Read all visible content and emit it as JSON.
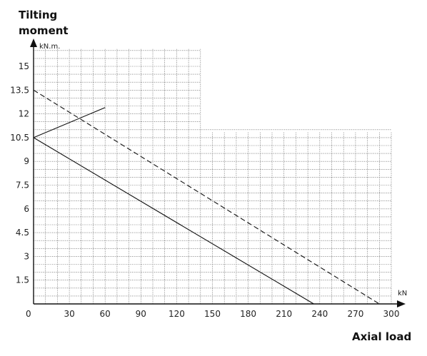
{
  "chart_data": {
    "type": "line",
    "ylabel_lines": [
      "Tilting",
      "moment"
    ],
    "yunit": "kN.m.",
    "xlabel": "Axial load",
    "xunit": "kN",
    "x_origin_label": "0",
    "xticks": [
      30,
      60,
      90,
      120,
      150,
      180,
      210,
      240,
      270,
      300
    ],
    "yticks": [
      "1.5",
      "3",
      "4.5",
      "6",
      "7.5",
      "9",
      "10.5",
      "12",
      "13.5",
      "15"
    ],
    "xlim": [
      0,
      300
    ],
    "ylim": [
      0,
      16
    ],
    "grid": true,
    "series": [
      {
        "style": "solid",
        "points": [
          [
            0,
            10.5
          ],
          [
            235,
            0
          ]
        ]
      },
      {
        "style": "dashed",
        "points": [
          [
            0,
            13.5
          ],
          [
            290,
            0
          ]
        ]
      },
      {
        "style": "solid",
        "points": [
          [
            0,
            10.5
          ],
          [
            60,
            12.4
          ]
        ]
      }
    ]
  }
}
